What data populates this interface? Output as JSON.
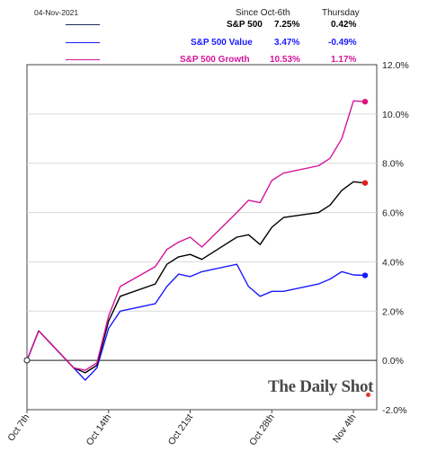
{
  "header": {
    "date": "04-Nov-2021",
    "col_since": "Since Oct-6th",
    "col_day": "Thursday"
  },
  "legend": [
    {
      "name": "S&P 500",
      "since": "7.25%",
      "day": "0.42%",
      "color": "#000000",
      "line_color": "#1f2a5a"
    },
    {
      "name": "S&P 500 Value",
      "since": "3.47%",
      "day": "-0.49%",
      "color": "#1a1aff",
      "line_color": "#1a1aff"
    },
    {
      "name": "S&P 500 Growth",
      "since": "10.53%",
      "day": "1.17%",
      "color": "#d4149b",
      "line_color": "#d4149b"
    }
  ],
  "watermark": "The Daily Shot",
  "chart_data": {
    "type": "line",
    "x_start": "2021-10-07",
    "x_end": "2021-11-06",
    "xticks": [
      "Oct 7th",
      "Oct 14th",
      "Oct 21st",
      "Oct 28th",
      "Nov 4th"
    ],
    "yticks": [
      "-2.0%",
      "0.0%",
      "2.0%",
      "4.0%",
      "6.0%",
      "8.0%",
      "10.0%",
      "12.0%"
    ],
    "ylim": [
      -2,
      12
    ],
    "grid": true,
    "y_axis_side": "right",
    "series": [
      {
        "name": "S&P 500",
        "color": "#000000",
        "x": [
          "2021-10-07",
          "2021-10-08",
          "2021-10-11",
          "2021-10-12",
          "2021-10-13",
          "2021-10-14",
          "2021-10-15",
          "2021-10-18",
          "2021-10-19",
          "2021-10-20",
          "2021-10-21",
          "2021-10-22",
          "2021-10-25",
          "2021-10-26",
          "2021-10-27",
          "2021-10-28",
          "2021-10-29",
          "2021-11-01",
          "2021-11-02",
          "2021-11-03",
          "2021-11-04",
          "2021-11-05"
        ],
        "y": [
          0.0,
          1.2,
          -0.3,
          -0.5,
          -0.2,
          1.6,
          2.6,
          3.1,
          3.9,
          4.2,
          4.3,
          4.1,
          5.0,
          5.1,
          4.7,
          5.4,
          5.8,
          6.0,
          6.3,
          6.9,
          7.25,
          7.2
        ]
      },
      {
        "name": "S&P 500 Value",
        "color": "#1a1aff",
        "x": [
          "2021-10-07",
          "2021-10-08",
          "2021-10-11",
          "2021-10-12",
          "2021-10-13",
          "2021-10-14",
          "2021-10-15",
          "2021-10-18",
          "2021-10-19",
          "2021-10-20",
          "2021-10-21",
          "2021-10-22",
          "2021-10-25",
          "2021-10-26",
          "2021-10-27",
          "2021-10-28",
          "2021-10-29",
          "2021-11-01",
          "2021-11-02",
          "2021-11-03",
          "2021-11-04",
          "2021-11-05"
        ],
        "y": [
          0.0,
          1.2,
          -0.3,
          -0.8,
          -0.3,
          1.3,
          2.0,
          2.3,
          3.0,
          3.5,
          3.4,
          3.6,
          3.9,
          3.0,
          2.6,
          2.8,
          2.8,
          3.1,
          3.3,
          3.6,
          3.47,
          3.45
        ]
      },
      {
        "name": "S&P 500 Growth",
        "color": "#d4149b",
        "x": [
          "2021-10-07",
          "2021-10-08",
          "2021-10-11",
          "2021-10-12",
          "2021-10-13",
          "2021-10-14",
          "2021-10-15",
          "2021-10-18",
          "2021-10-19",
          "2021-10-20",
          "2021-10-21",
          "2021-10-22",
          "2021-10-25",
          "2021-10-26",
          "2021-10-27",
          "2021-10-28",
          "2021-10-29",
          "2021-11-01",
          "2021-11-02",
          "2021-11-03",
          "2021-11-04",
          "2021-11-05"
        ],
        "y": [
          0.0,
          1.2,
          -0.3,
          -0.4,
          -0.1,
          1.8,
          3.0,
          3.8,
          4.5,
          4.8,
          5.0,
          4.6,
          6.0,
          6.5,
          6.4,
          7.3,
          7.6,
          7.9,
          8.2,
          9.0,
          10.53,
          10.5
        ]
      }
    ]
  }
}
